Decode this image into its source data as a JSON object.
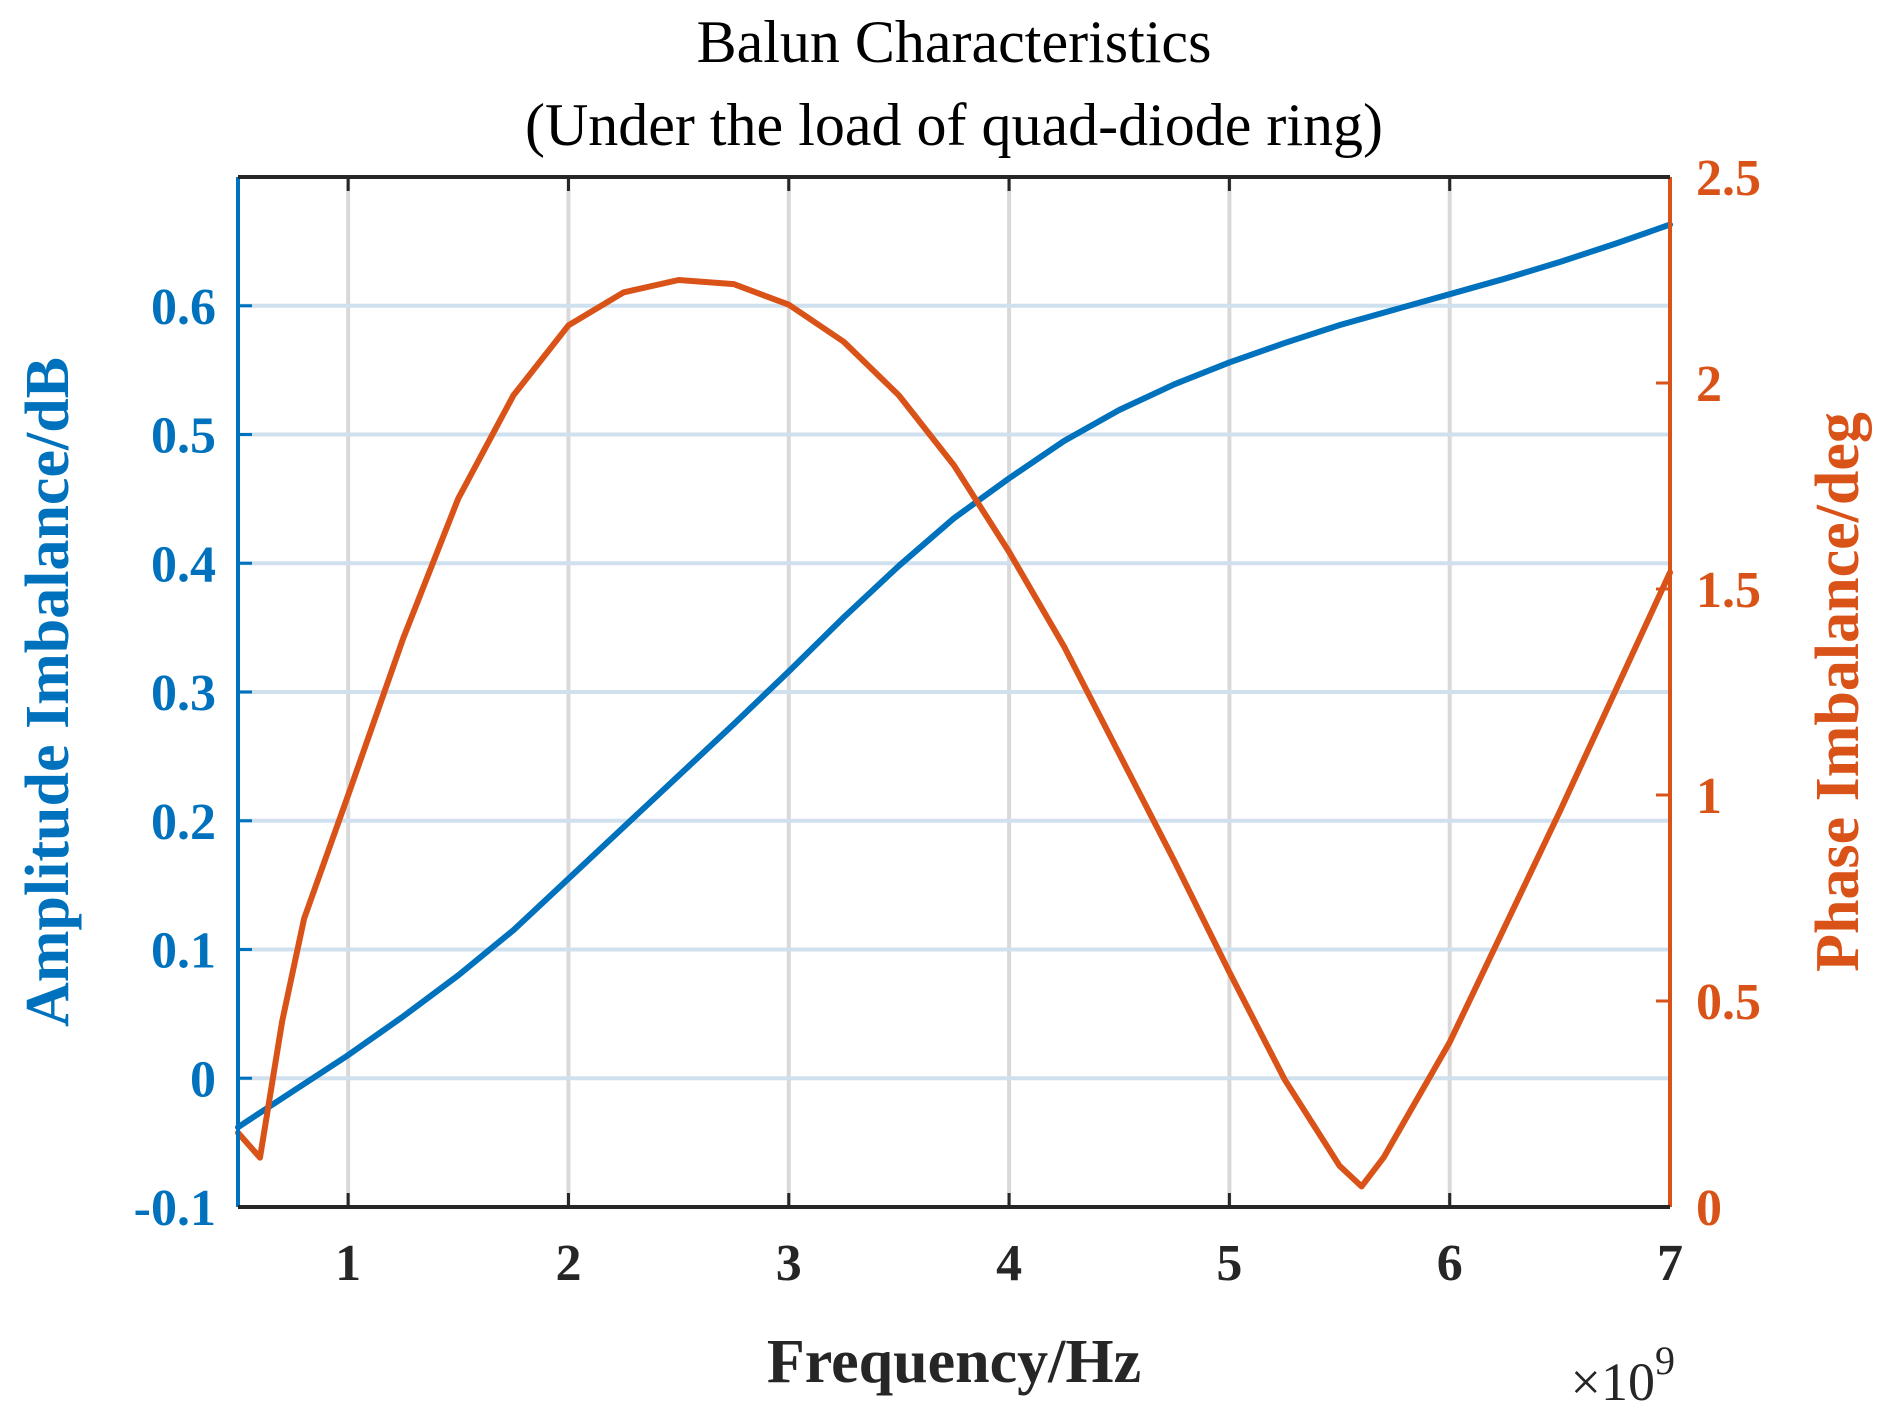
{
  "chart_data": {
    "type": "line",
    "title": "Balun Characteristics",
    "subtitle": "(Under the load of quad-diode ring)",
    "xlabel": "Frequency/Hz",
    "x_exponent_base": "×10",
    "x_exponent_power": "9",
    "xlim": [
      0.5,
      7
    ],
    "x_ticks": [
      "1",
      "2",
      "3",
      "4",
      "5",
      "6",
      "7"
    ],
    "y_left": {
      "label": "Amplitude Imbalance/dB",
      "ylim": [
        -0.1,
        0.7
      ],
      "ticks": [
        "-0.1",
        "0",
        "0.1",
        "0.2",
        "0.3",
        "0.4",
        "0.5",
        "0.6"
      ],
      "color": "#0072BD"
    },
    "y_right": {
      "label": "Phase Imbalance/deg",
      "ylim": [
        0,
        2.5
      ],
      "ticks": [
        "0",
        "0.5",
        "1",
        "1.5",
        "2",
        "2.5"
      ],
      "color": "#D95319"
    },
    "grid": true,
    "series": [
      {
        "axis": "left",
        "color": "#0072BD",
        "x": [
          0.5,
          0.75,
          1.0,
          1.25,
          1.5,
          1.75,
          2.0,
          2.25,
          2.5,
          2.75,
          3.0,
          3.25,
          3.5,
          3.75,
          4.0,
          4.25,
          4.5,
          4.75,
          5.0,
          5.25,
          5.5,
          5.75,
          6.0,
          6.25,
          6.5,
          6.75,
          7.0
        ],
        "values": [
          -0.038,
          -0.01,
          0.018,
          0.048,
          0.08,
          0.115,
          0.155,
          0.195,
          0.235,
          0.275,
          0.316,
          0.358,
          0.398,
          0.435,
          0.466,
          0.495,
          0.519,
          0.539,
          0.556,
          0.571,
          0.585,
          0.597,
          0.609,
          0.621,
          0.634,
          0.648,
          0.663
        ]
      },
      {
        "axis": "right",
        "color": "#D95319",
        "x": [
          0.5,
          0.6,
          0.7,
          0.8,
          1.0,
          1.25,
          1.5,
          1.75,
          2.0,
          2.25,
          2.5,
          2.75,
          3.0,
          3.25,
          3.5,
          3.75,
          4.0,
          4.25,
          4.5,
          4.75,
          5.0,
          5.25,
          5.5,
          5.6,
          5.7,
          6.0,
          6.5,
          7.0
        ],
        "values": [
          0.18,
          0.12,
          0.45,
          0.7,
          1.0,
          1.38,
          1.72,
          1.97,
          2.14,
          2.22,
          2.25,
          2.24,
          2.19,
          2.1,
          1.97,
          1.8,
          1.59,
          1.36,
          1.1,
          0.84,
          0.57,
          0.31,
          0.1,
          0.05,
          0.12,
          0.4,
          0.96,
          1.54
        ]
      }
    ]
  }
}
